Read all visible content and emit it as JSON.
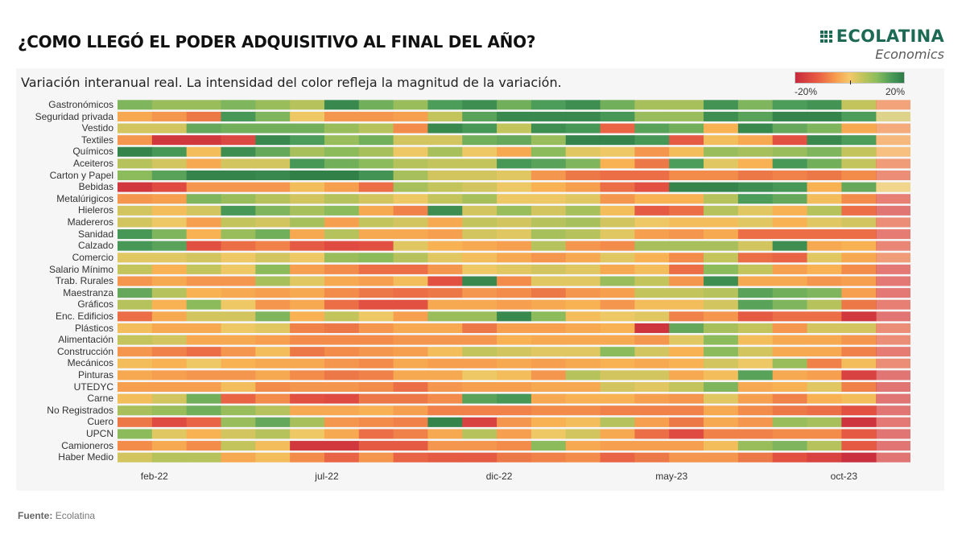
{
  "header": {
    "title": "¿COMO LLEGÓ EL PODER ADQUISITIVO AL FINAL DEL AÑO?",
    "logo_main": "ECOLATINA",
    "logo_sub": "Economics",
    "brand_color": "#1d6a54"
  },
  "footer": {
    "source_label": "Fuente:",
    "source_value": "Ecolatina"
  },
  "chart_data": {
    "type": "heatmap",
    "title": "¿COMO LLEGÓ EL PODER ADQUISITIVO AL FINAL DEL AÑO?",
    "subtitle": "Variación interanual real. La intensidad del color refleja la magnitud de la variación.",
    "xlabel": "",
    "ylabel": "",
    "unit": "%",
    "color_scale": {
      "min": -20,
      "max": 20,
      "min_label": "-20%",
      "max_label": "20%",
      "low_color": "#c62a3c",
      "mid_color": "#f5c96a",
      "high_color": "#2d7a48",
      "placement": "top-right"
    },
    "x_tick_labels": [
      {
        "label": "feb-22",
        "index": 1
      },
      {
        "label": "jul-22",
        "index": 6
      },
      {
        "label": "dic-22",
        "index": 11
      },
      {
        "label": "may-23",
        "index": 16
      },
      {
        "label": "oct-23",
        "index": 21
      }
    ],
    "x": [
      "ene-22",
      "feb-22",
      "mar-22",
      "abr-22",
      "may-22",
      "jun-22",
      "jul-22",
      "ago-22",
      "sep-22",
      "oct-22",
      "nov-22",
      "dic-22",
      "ene-23",
      "feb-23",
      "mar-23",
      "abr-23",
      "may-23",
      "jun-23",
      "jul-23",
      "ago-23",
      "sep-23",
      "oct-23",
      "nov-23"
    ],
    "y": [
      "Gastronómicos",
      "Seguridad privada",
      "Vestido",
      "Textiles",
      "Químicos",
      "Aceiteros",
      "Carton y Papel",
      "Bebidas",
      "Metalúrigicos",
      "Hieleros",
      "Madereros",
      "Sanidad",
      "Calzado",
      "Comercio",
      "Salario Mínimo",
      "Trab. Rurales",
      "Maestranza",
      "Gráficos",
      "Enc. Edificios",
      "Plásticos",
      "Alimentación",
      "Construcción",
      "Mecánicos",
      "Pinturas",
      "UTEDYC",
      "Carne",
      "No Registrados",
      "Cuero",
      "UPCN",
      "Camioneros",
      "Haber Medio"
    ],
    "values": [
      [
        8,
        6,
        6,
        8,
        6,
        4,
        16,
        9,
        6,
        12,
        15,
        9,
        12,
        15,
        9,
        5,
        5,
        14,
        8,
        12,
        14,
        3,
        -7
      ],
      [
        -3,
        -5,
        -8,
        13,
        8,
        0,
        -5,
        -5,
        -4,
        3,
        11,
        16,
        16,
        16,
        13,
        6,
        6,
        15,
        11,
        17,
        17,
        12,
        2
      ],
      [
        2,
        2,
        10,
        9,
        9,
        9,
        6,
        4,
        -6,
        16,
        13,
        3,
        15,
        13,
        -10,
        11,
        9,
        -2,
        16,
        10,
        8,
        -3,
        -6
      ],
      [
        -5,
        -17,
        -17,
        -14,
        16,
        12,
        6,
        9,
        2,
        2,
        9,
        10,
        6,
        17,
        17,
        13,
        -11,
        -1,
        -3,
        -12,
        16,
        12,
        -4
      ],
      [
        17,
        13,
        -1,
        15,
        10,
        5,
        7,
        5,
        0,
        5,
        0,
        -3,
        7,
        1,
        0,
        -5,
        -1,
        6,
        5,
        6,
        8,
        3,
        -3
      ],
      [
        4,
        2,
        -3,
        2,
        2,
        13,
        9,
        7,
        4,
        3,
        3,
        13,
        11,
        8,
        -2,
        -8,
        12,
        1,
        -2,
        13,
        9,
        3,
        -8
      ],
      [
        7,
        11,
        17,
        17,
        16,
        18,
        18,
        14,
        5,
        2,
        2,
        1,
        -5,
        -8,
        -9,
        -9,
        -6,
        -6,
        -8,
        -7,
        -8,
        -6,
        -10
      ],
      [
        -17,
        -13,
        -5,
        -5,
        -5,
        -1,
        -4,
        -9,
        5,
        3,
        2,
        0,
        -2,
        -4,
        -9,
        -12,
        17,
        17,
        15,
        13,
        -2,
        10,
        0
      ],
      [
        -5,
        -4,
        8,
        6,
        4,
        2,
        4,
        2,
        0,
        3,
        5,
        0,
        0,
        1,
        -5,
        -2,
        -2,
        4,
        12,
        10,
        -1,
        -6,
        -12
      ],
      [
        2,
        -1,
        2,
        13,
        8,
        5,
        7,
        -3,
        -7,
        15,
        2,
        6,
        2,
        5,
        -1,
        -11,
        -9,
        4,
        1,
        -2,
        4,
        -9,
        -15
      ],
      [
        2,
        0,
        -4,
        3,
        2,
        5,
        -4,
        3,
        2,
        -3,
        3,
        2,
        4,
        5,
        2,
        0,
        -1,
        -1,
        1,
        -2,
        1,
        2,
        -10
      ],
      [
        13,
        8,
        -2,
        6,
        9,
        -3,
        4,
        -3,
        -3,
        -4,
        2,
        1,
        5,
        4,
        1,
        -4,
        -5,
        -3,
        -9,
        -9,
        -9,
        -9,
        -13
      ],
      [
        13,
        11,
        -12,
        -9,
        -7,
        -11,
        -13,
        -12,
        1,
        -2,
        -3,
        -4,
        4,
        -5,
        -6,
        5,
        5,
        5,
        2,
        15,
        -3,
        -2,
        -11
      ],
      [
        1,
        1,
        2,
        0,
        2,
        0,
        6,
        7,
        4,
        1,
        -1,
        -3,
        -5,
        -3,
        1,
        -2,
        -6,
        3,
        -9,
        -10,
        1,
        -3,
        -8
      ],
      [
        3,
        -2,
        3,
        0,
        7,
        -4,
        -6,
        -9,
        -9,
        -5,
        0,
        1,
        2,
        1,
        -3,
        -1,
        -9,
        7,
        3,
        -4,
        -2,
        -6,
        -14
      ],
      [
        -5,
        -3,
        -5,
        -5,
        5,
        1,
        -3,
        -4,
        -1,
        -12,
        16,
        -6,
        1,
        1,
        6,
        3,
        -5,
        15,
        -3,
        -3,
        -5,
        -4,
        -14
      ],
      [
        10,
        4,
        -2,
        -3,
        -4,
        -3,
        -6,
        -8,
        -9,
        -8,
        -5,
        -6,
        -8,
        -5,
        -4,
        3,
        3,
        4,
        11,
        9,
        8,
        -4,
        -14
      ],
      [
        4,
        -2,
        7,
        0,
        -5,
        -3,
        -9,
        -12,
        -12,
        -3,
        -3,
        -4,
        -3,
        -2,
        -5,
        -1,
        -1,
        2,
        11,
        8,
        4,
        -8,
        -12
      ],
      [
        -9,
        -3,
        2,
        2,
        8,
        -2,
        3,
        0,
        -4,
        6,
        6,
        16,
        7,
        -1,
        0,
        1,
        -7,
        -5,
        -11,
        -9,
        -9,
        -17,
        -15
      ],
      [
        -1,
        -3,
        -3,
        0,
        1,
        -7,
        -8,
        -5,
        -3,
        -3,
        -8,
        -4,
        -4,
        -3,
        -2,
        -18,
        10,
        5,
        3,
        -5,
        2,
        2,
        -10
      ],
      [
        3,
        2,
        -3,
        -3,
        -4,
        -6,
        -6,
        -6,
        -5,
        -5,
        -5,
        -2,
        -3,
        -3,
        -3,
        -5,
        1,
        7,
        -1,
        -3,
        -3,
        -5,
        -10
      ],
      [
        -5,
        -7,
        -9,
        -5,
        -1,
        -8,
        -6,
        -5,
        -4,
        -1,
        3,
        2,
        1,
        1,
        7,
        2,
        -2,
        7,
        2,
        -3,
        -3,
        -7,
        -13
      ],
      [
        -1,
        -2,
        0,
        -2,
        -3,
        -3,
        -5,
        -6,
        -3,
        -4,
        -4,
        -3,
        -4,
        -3,
        -2,
        -3,
        -2,
        2,
        0,
        6,
        -7,
        -1,
        -10
      ],
      [
        -3,
        -4,
        -5,
        -5,
        -3,
        -6,
        -8,
        -7,
        -3,
        -3,
        0,
        -1,
        -5,
        4,
        2,
        2,
        -3,
        -1,
        11,
        -3,
        -4,
        -15,
        -15
      ],
      [
        -4,
        -4,
        -4,
        -1,
        -6,
        -5,
        -5,
        -6,
        -9,
        -5,
        -4,
        -4,
        -3,
        -3,
        2,
        1,
        3,
        8,
        -3,
        -2,
        1,
        -7,
        -15
      ],
      [
        -1,
        2,
        9,
        -10,
        -6,
        -12,
        -13,
        -8,
        -8,
        -6,
        11,
        13,
        -3,
        -2,
        -2,
        -4,
        -5,
        1,
        -4,
        -7,
        -2,
        -1,
        -15
      ],
      [
        5,
        6,
        9,
        6,
        4,
        -3,
        -3,
        -2,
        -4,
        -7,
        -7,
        -7,
        -6,
        -6,
        -7,
        -7,
        -7,
        -3,
        -6,
        -8,
        -9,
        -12,
        -15
      ],
      [
        -8,
        -13,
        -10,
        6,
        10,
        5,
        -5,
        -6,
        -7,
        17,
        -15,
        -5,
        -2,
        -1,
        4,
        -4,
        -8,
        -3,
        -5,
        6,
        5,
        -18,
        -14
      ],
      [
        7,
        1,
        -2,
        2,
        4,
        0,
        -3,
        -9,
        -7,
        -3,
        4,
        -4,
        0,
        2,
        -3,
        -9,
        -13,
        -7,
        -7,
        -6,
        -6,
        -11,
        -15
      ],
      [
        -6,
        -3,
        -6,
        3,
        -1,
        -17,
        -17,
        -11,
        -11,
        -5,
        -5,
        -6,
        7,
        -3,
        -4,
        -4,
        -4,
        -1,
        6,
        8,
        4,
        -11,
        -15
      ],
      [
        2,
        4,
        4,
        -3,
        -1,
        -6,
        -10,
        -5,
        -10,
        -11,
        -11,
        -8,
        -7,
        -6,
        -10,
        -8,
        -5,
        -5,
        -8,
        -12,
        -15,
        -19,
        -15
      ]
    ],
    "last_column_faded": true,
    "grid": false
  }
}
